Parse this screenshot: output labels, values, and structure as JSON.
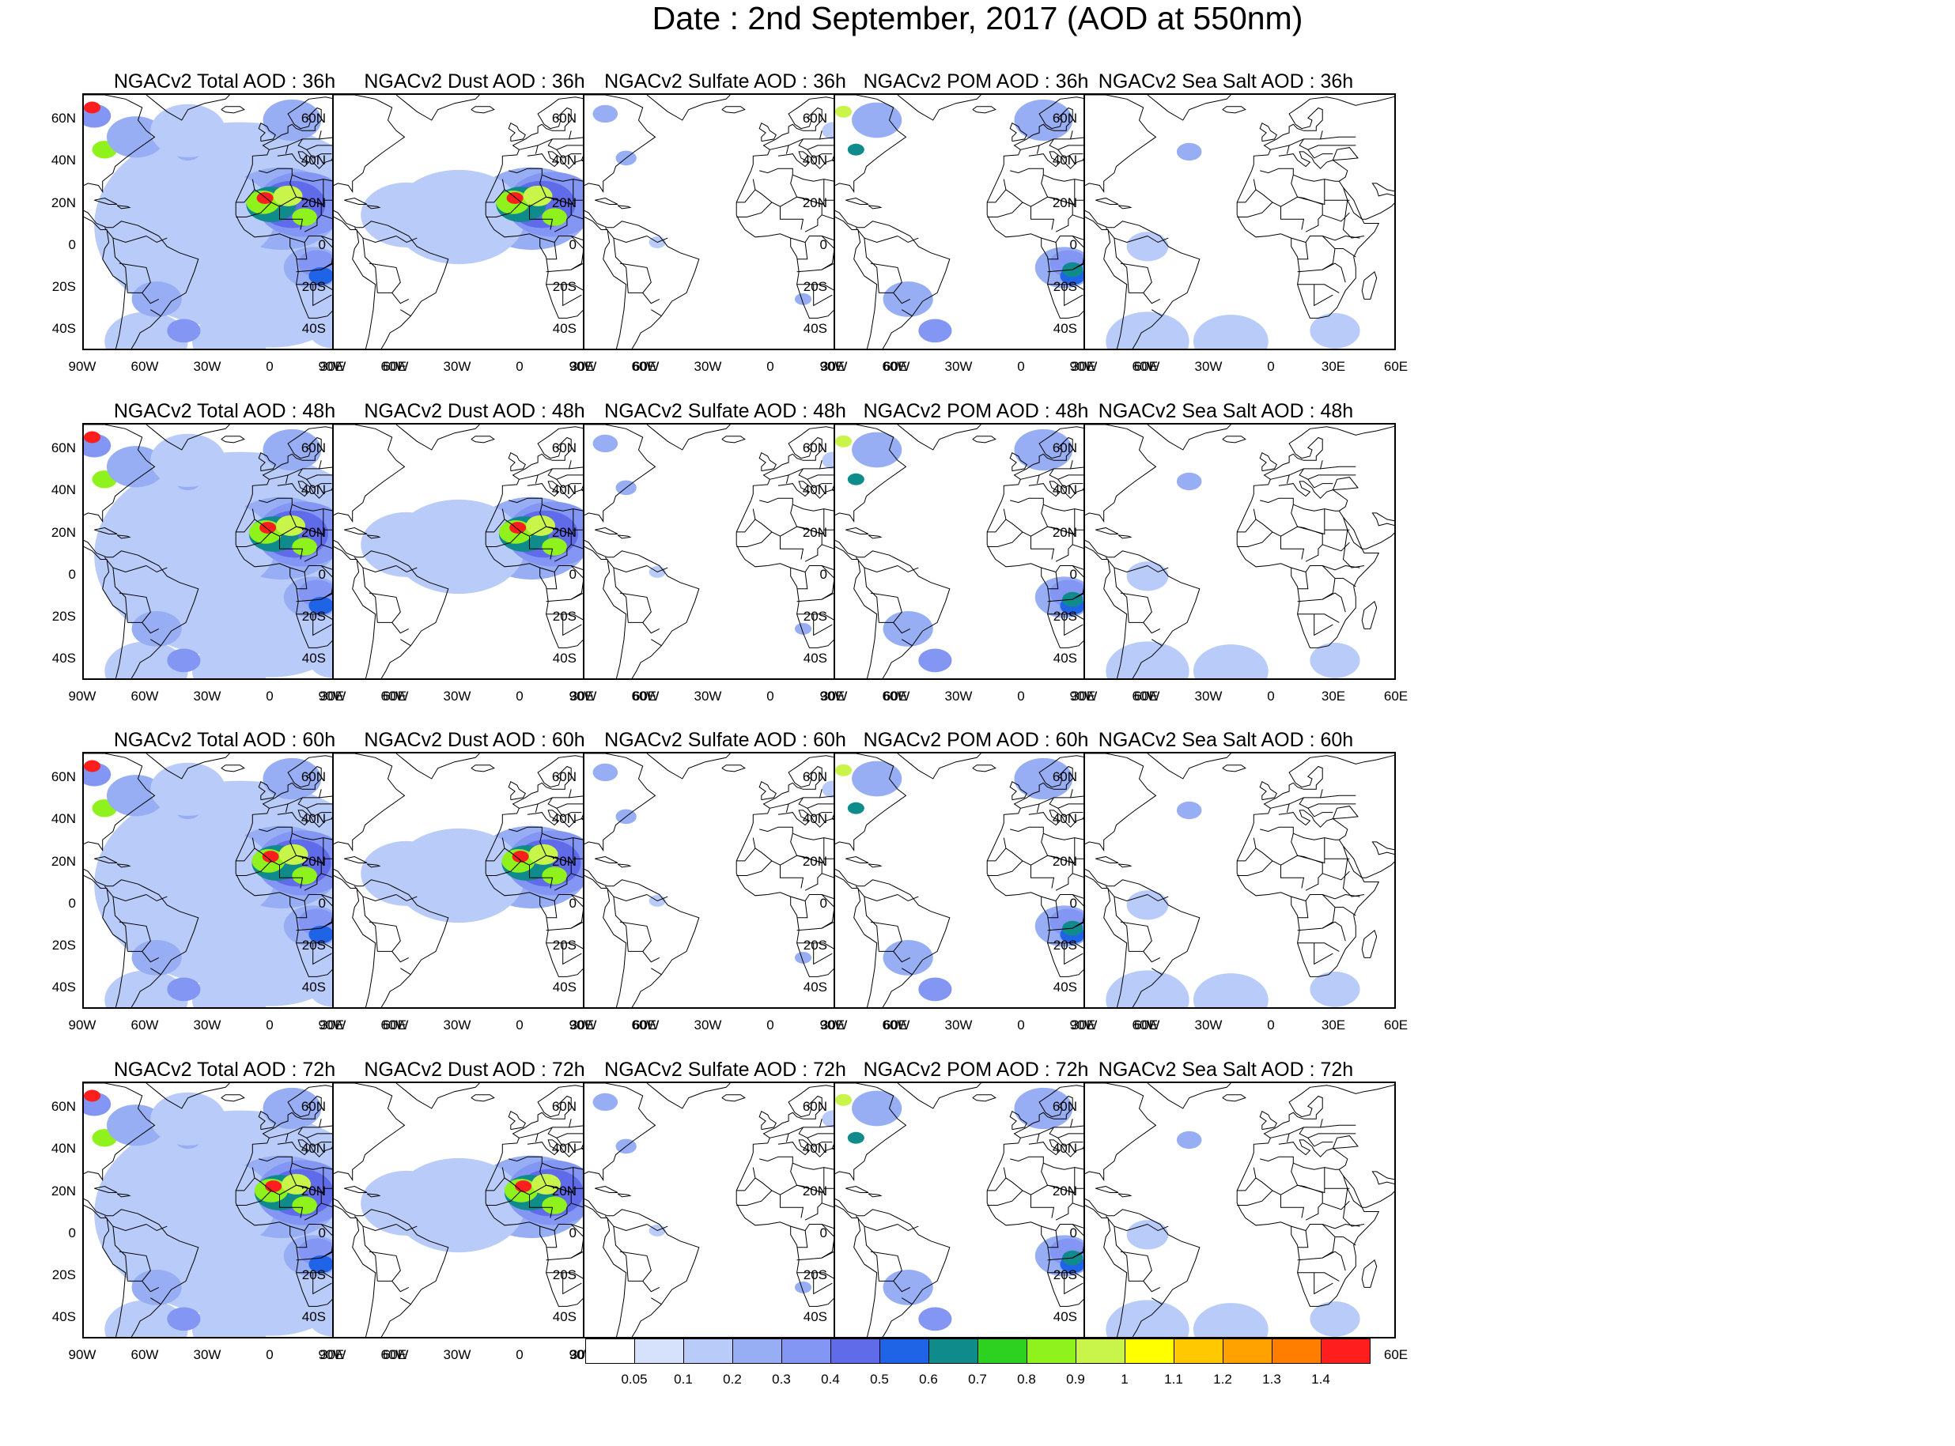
{
  "title": "Date : 2nd September, 2017 (AOD at 550nm)",
  "map_axes": {
    "lat_ticks": [
      "60N",
      "40N",
      "20N",
      "0",
      "20S",
      "40S"
    ],
    "lon_ticks": [
      "90W",
      "60W",
      "30W",
      "0",
      "30E",
      "60E"
    ]
  },
  "species": [
    {
      "key": "total",
      "label": "Total AOD"
    },
    {
      "key": "dust",
      "label": "Dust AOD"
    },
    {
      "key": "sulfate",
      "label": "Sulfate AOD"
    },
    {
      "key": "pom",
      "label": "POM AOD"
    },
    {
      "key": "seasalt",
      "label": "Sea Salt AOD"
    }
  ],
  "panel_titles": [
    [
      "NGACv2 Total AOD : 36h",
      "NGACv2 Dust AOD : 36h",
      "NGACv2 Sulfate AOD : 36h",
      "NGACv2 POM AOD : 36h",
      "NGACv2 Sea Salt AOD : 36h"
    ],
    [
      "NGACv2 Total AOD : 48h",
      "NGACv2 Dust AOD : 48h",
      "NGACv2 Sulfate AOD : 48h",
      "NGACv2 POM AOD : 48h",
      "NGACv2 Sea Salt AOD : 48h"
    ],
    [
      "NGACv2 Total AOD : 60h",
      "NGACv2 Dust AOD : 60h",
      "NGACv2 Sulfate AOD : 60h",
      "NGACv2 POM AOD : 60h",
      "NGACv2 Sea Salt AOD : 60h"
    ],
    [
      "NGACv2 Total AOD : 72h",
      "NGACv2 Dust AOD : 72h",
      "NGACv2 Sulfate AOD : 72h",
      "NGACv2 POM AOD : 72h",
      "NGACv2 Sea Salt  AOD : 72h"
    ]
  ],
  "colorbar": {
    "labels": [
      "0.05",
      "0.1",
      "0.2",
      "0.3",
      "0.4",
      "0.5",
      "0.6",
      "0.7",
      "0.8",
      "0.9",
      "1",
      "1.1",
      "1.2",
      "1.3",
      "1.4"
    ],
    "colors": [
      "#ffffff",
      "#d6e2fb",
      "#b9cbf8",
      "#97aef4",
      "#8396f3",
      "#5f6be9",
      "#1f63e6",
      "#0f8b8b",
      "#2dd11f",
      "#8ff21c",
      "#c9f54a",
      "#ffff00",
      "#ffc800",
      "#ffa200",
      "#ff7e00",
      "#ff1e1e"
    ]
  }
}
